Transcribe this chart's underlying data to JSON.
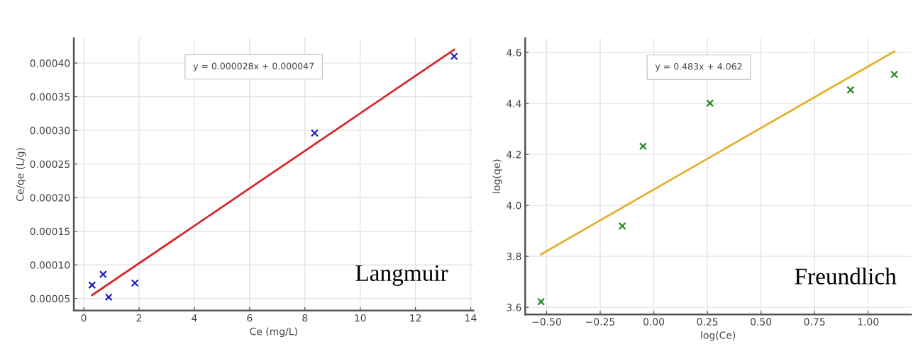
{
  "chart_data": [
    {
      "type": "scatter",
      "xlabel": "Ce (mg/L)",
      "ylabel": "Ce/qe (L/g)",
      "xlim": [
        -0.36,
        14.1
      ],
      "ylim": [
        3.2e-05,
        0.000437
      ],
      "xticks": [
        0,
        2,
        4,
        6,
        8,
        10,
        12,
        14
      ],
      "yticks": [
        {
          "value": 5e-05,
          "label": "0.00005"
        },
        {
          "value": 0.0001,
          "label": "0.00010"
        },
        {
          "value": 0.00015,
          "label": "0.00015"
        },
        {
          "value": 0.0002,
          "label": "0.00020"
        },
        {
          "value": 0.00025,
          "label": "0.00025"
        },
        {
          "value": 0.0003,
          "label": "0.00030"
        },
        {
          "value": 0.00035,
          "label": "0.00035"
        },
        {
          "value": 0.0004,
          "label": "0.00040"
        }
      ],
      "grid": true,
      "marker": "cross",
      "series": [
        {
          "color": "#1f1fc8",
          "x": [
            0.3,
            0.7,
            0.9,
            1.85,
            8.35,
            13.4
          ],
          "values": [
            7e-05,
            8.6e-05,
            5.2e-05,
            7.3e-05,
            0.000296,
            0.00041
          ]
        },
        {
          "type": "line",
          "color": "#d62728",
          "marker": "none",
          "line_style": "solid",
          "x": [
            0.3,
            13.4
          ],
          "values": [
            5.5e-05,
            0.00042
          ]
        }
      ],
      "annotations": [
        "y = 0.000028x + 0.000047",
        "Langmuir"
      ]
    },
    {
      "type": "scatter",
      "xlabel": "log(Ce)",
      "ylabel": "log(qe)",
      "xlim": [
        -0.6,
        1.2
      ],
      "ylim": [
        3.572,
        4.656
      ],
      "xticks": [
        {
          "value": -0.5,
          "label": "−0.50"
        },
        {
          "value": -0.25,
          "label": "−0.25"
        },
        {
          "value": 0,
          "label": "0.00"
        },
        {
          "value": 0.25,
          "label": "0.25"
        },
        {
          "value": 0.5,
          "label": "0.50"
        },
        {
          "value": 0.75,
          "label": "0.75"
        },
        {
          "value": 1.0,
          "label": "1.00"
        }
      ],
      "yticks": [
        {
          "value": 3.6,
          "label": "3.6"
        },
        {
          "value": 3.8,
          "label": "3.8"
        },
        {
          "value": 4.0,
          "label": "4.0"
        },
        {
          "value": 4.2,
          "label": "4.2"
        },
        {
          "value": 4.4,
          "label": "4.4"
        },
        {
          "value": 4.6,
          "label": "4.6"
        }
      ],
      "grid": true,
      "marker": "cross",
      "series": [
        {
          "color": "#228b22",
          "x": [
            -0.526,
            -0.147,
            -0.05,
            0.262,
            0.918,
            1.122
          ],
          "values": [
            3.622,
            3.919,
            4.232,
            4.401,
            4.453,
            4.514
          ]
        },
        {
          "type": "line",
          "color": "#e6b030",
          "marker": "none",
          "line_style": "solid",
          "x": [
            -0.526,
            1.122
          ],
          "values": [
            3.808,
            4.604
          ]
        }
      ],
      "annotations": [
        "y = 0.483x + 4.062",
        "Freundlich"
      ]
    }
  ]
}
